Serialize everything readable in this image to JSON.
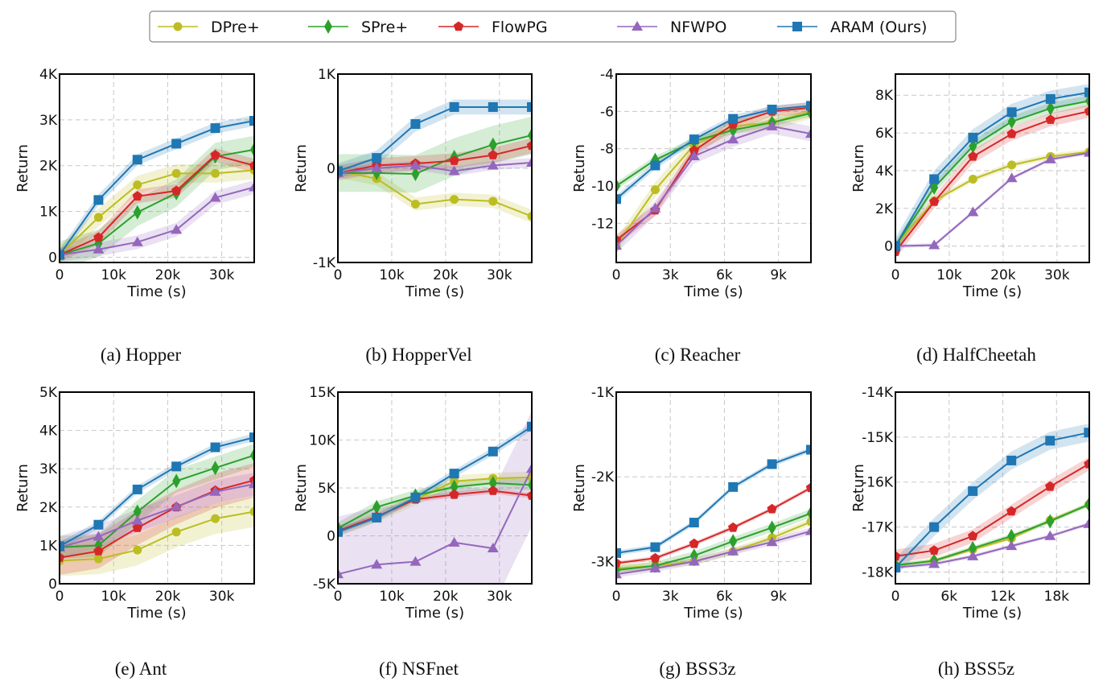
{
  "legend": {
    "placement": "top-center",
    "items": [
      {
        "name": "DPre+",
        "color": "#bcbd22",
        "marker": "circle"
      },
      {
        "name": "SPre+",
        "color": "#2ca02c",
        "marker": "thin-diamond"
      },
      {
        "name": "FlowPG",
        "color": "#d62728",
        "marker": "pentagon"
      },
      {
        "name": "NFWPO",
        "color": "#9467bd",
        "marker": "triangle-up"
      },
      {
        "name": "ARAM (Ours)",
        "color": "#1f77b4",
        "marker": "square"
      }
    ]
  },
  "chart_data": [
    {
      "type": "line",
      "title": "(a) Hopper",
      "xlabel": "Time (s)",
      "ylabel": "Return",
      "grid": true,
      "xlim": [
        0,
        36000
      ],
      "ylim": [
        -115,
        4000
      ],
      "xticks": [
        0,
        10000,
        20000,
        30000
      ],
      "xtick_labels": [
        "0",
        "10k",
        "20k",
        "30k"
      ],
      "yticks": [
        0,
        1000,
        2000,
        3000,
        4000
      ],
      "ytick_labels": [
        "0",
        "1K",
        "2K",
        "3K",
        "4K"
      ],
      "x": [
        0,
        7200,
        14400,
        21600,
        28800,
        36000
      ],
      "series": [
        {
          "name": "DPre+",
          "values": [
            50,
            870,
            1580,
            1830,
            1830,
            1900
          ],
          "band": 200
        },
        {
          "name": "SPre+",
          "values": [
            50,
            300,
            980,
            1400,
            2200,
            2350
          ],
          "band": 300
        },
        {
          "name": "FlowPG",
          "values": [
            50,
            430,
            1330,
            1450,
            2230,
            2000
          ],
          "band": 150
        },
        {
          "name": "NFWPO",
          "values": [
            50,
            170,
            330,
            600,
            1300,
            1530
          ],
          "band": 150
        },
        {
          "name": "ARAM (Ours)",
          "values": [
            50,
            1250,
            2130,
            2480,
            2820,
            2980
          ],
          "band": 120
        }
      ]
    },
    {
      "type": "line",
      "title": "(b) HopperVel",
      "xlabel": "Time (s)",
      "ylabel": "Return",
      "grid": true,
      "xlim": [
        0,
        36000
      ],
      "ylim": [
        -1000,
        1000
      ],
      "xticks": [
        0,
        10000,
        20000,
        30000
      ],
      "xtick_labels": [
        "0",
        "10k",
        "20k",
        "30k"
      ],
      "yticks": [
        -1000,
        0,
        1000
      ],
      "ytick_labels": [
        "-1K",
        "0",
        "1K"
      ],
      "x": [
        0,
        7200,
        14400,
        21600,
        28800,
        36000
      ],
      "series": [
        {
          "name": "DPre+",
          "values": [
            -30,
            -110,
            -380,
            -330,
            -350,
            -510
          ],
          "band": 70
        },
        {
          "name": "SPre+",
          "values": [
            -50,
            -50,
            -60,
            120,
            250,
            350
          ],
          "band": 200
        },
        {
          "name": "FlowPG",
          "values": [
            -50,
            30,
            50,
            80,
            140,
            240
          ],
          "band": 80
        },
        {
          "name": "NFWPO",
          "values": [
            -50,
            0,
            30,
            -30,
            30,
            60
          ],
          "band": 50
        },
        {
          "name": "ARAM (Ours)",
          "values": [
            -30,
            110,
            470,
            650,
            650,
            650
          ],
          "band": 80
        }
      ]
    },
    {
      "type": "line",
      "title": "(c) Reacher",
      "xlabel": "Time (s)",
      "ylabel": "Return",
      "grid": true,
      "xlim": [
        0,
        10800
      ],
      "ylim": [
        -14.1,
        -4
      ],
      "xticks": [
        0,
        3000,
        6000,
        9000
      ],
      "xtick_labels": [
        "0",
        "3k",
        "6k",
        "9k"
      ],
      "yticks": [
        -12,
        -10,
        -8,
        -6,
        -4
      ],
      "ytick_labels": [
        "-12",
        "-10",
        "-8",
        "-6",
        "-4"
      ],
      "x": [
        0,
        2160,
        4320,
        6480,
        8640,
        10800
      ],
      "series": [
        {
          "name": "DPre+",
          "values": [
            -13.2,
            -10.2,
            -7.8,
            -6.8,
            -6.6,
            -6.0
          ],
          "band": 0.4
        },
        {
          "name": "SPre+",
          "values": [
            -10.0,
            -8.6,
            -7.6,
            -7.0,
            -6.6,
            -6.1
          ],
          "band": 0.2
        },
        {
          "name": "FlowPG",
          "values": [
            -12.9,
            -11.3,
            -8.1,
            -6.7,
            -6.0,
            -5.8
          ],
          "band": 0.3
        },
        {
          "name": "NFWPO",
          "values": [
            -13.2,
            -11.2,
            -8.4,
            -7.5,
            -6.8,
            -7.2
          ],
          "band": 0.4
        },
        {
          "name": "ARAM (Ours)",
          "values": [
            -10.7,
            -8.9,
            -7.5,
            -6.4,
            -5.9,
            -5.7
          ],
          "band": 0.2
        }
      ]
    },
    {
      "type": "line",
      "title": "(d) HalfCheetah",
      "xlabel": "Time (s)",
      "ylabel": "Return",
      "grid": true,
      "xlim": [
        0,
        36000
      ],
      "ylim": [
        -870,
        9120
      ],
      "xticks": [
        0,
        10000,
        20000,
        30000
      ],
      "xtick_labels": [
        "0",
        "10k",
        "20k",
        "30k"
      ],
      "yticks": [
        0,
        2000,
        4000,
        6000,
        8000
      ],
      "ytick_labels": [
        "0",
        "2K",
        "4K",
        "6K",
        "8K"
      ],
      "x": [
        0,
        7200,
        14400,
        21600,
        28800,
        36000
      ],
      "series": [
        {
          "name": "DPre+",
          "values": [
            0,
            2400,
            3550,
            4300,
            4750,
            5000
          ],
          "band": 150
        },
        {
          "name": "SPre+",
          "values": [
            0,
            3100,
            5300,
            6600,
            7300,
            7700
          ],
          "band": 300
        },
        {
          "name": "FlowPG",
          "values": [
            -300,
            2350,
            4750,
            5950,
            6700,
            7150
          ],
          "band": 350
        },
        {
          "name": "NFWPO",
          "values": [
            0,
            50,
            1800,
            3600,
            4600,
            4950
          ],
          "band": 100
        },
        {
          "name": "ARAM (Ours)",
          "values": [
            0,
            3550,
            5750,
            7100,
            7800,
            8150
          ],
          "band": 450
        }
      ]
    },
    {
      "type": "line",
      "title": "(e) Ant",
      "xlabel": "Time (s)",
      "ylabel": "Return",
      "grid": true,
      "xlim": [
        0,
        36000
      ],
      "ylim": [
        0,
        5000
      ],
      "xticks": [
        0,
        10000,
        20000,
        30000
      ],
      "xtick_labels": [
        "0",
        "10k",
        "20k",
        "30k"
      ],
      "yticks": [
        0,
        1000,
        2000,
        3000,
        4000,
        5000
      ],
      "ytick_labels": [
        "0",
        "1K",
        "2K",
        "3K",
        "4K",
        "5K"
      ],
      "x": [
        0,
        7200,
        14400,
        21600,
        28800,
        36000
      ],
      "series": [
        {
          "name": "DPre+",
          "values": [
            600,
            650,
            880,
            1350,
            1700,
            1880
          ],
          "band": 400
        },
        {
          "name": "SPre+",
          "values": [
            950,
            1000,
            1880,
            2680,
            3020,
            3350
          ],
          "band": 300
        },
        {
          "name": "FlowPG",
          "values": [
            680,
            850,
            1460,
            2000,
            2430,
            2700
          ],
          "band": 450
        },
        {
          "name": "NFWPO",
          "values": [
            950,
            1230,
            1650,
            2010,
            2400,
            2600
          ],
          "band": 300
        },
        {
          "name": "ARAM (Ours)",
          "values": [
            980,
            1540,
            2460,
            3060,
            3560,
            3820
          ],
          "band": 100
        }
      ]
    },
    {
      "type": "line",
      "title": "(f) NSFnet",
      "xlabel": "Time (s)",
      "ylabel": "Return",
      "grid": true,
      "xlim": [
        0,
        36000
      ],
      "ylim": [
        -5000,
        15000
      ],
      "xticks": [
        0,
        10000,
        20000,
        30000
      ],
      "xtick_labels": [
        "0",
        "10k",
        "20k",
        "30k"
      ],
      "yticks": [
        -5000,
        0,
        5000,
        10000,
        15000
      ],
      "ytick_labels": [
        "-5K",
        "0",
        "5K",
        "10K",
        "15K"
      ],
      "x": [
        0,
        7200,
        14400,
        21600,
        28800,
        36000
      ],
      "series": [
        {
          "name": "DPre+",
          "values": [
            500,
            2000,
            3800,
            5700,
            6000,
            6100
          ],
          "band": 600
        },
        {
          "name": "SPre+",
          "values": [
            800,
            3000,
            4200,
            5100,
            5500,
            5300
          ],
          "band": 600
        },
        {
          "name": "FlowPG",
          "values": [
            500,
            2000,
            3800,
            4300,
            4700,
            4200
          ],
          "band": 300
        },
        {
          "name": "NFWPO",
          "values": [
            -4000,
            -3000,
            -2700,
            -700,
            -1300,
            7000
          ],
          "band": 6000
        },
        {
          "name": "ARAM (Ours)",
          "values": [
            400,
            1900,
            4000,
            6500,
            8800,
            11400
          ],
          "band": 400
        }
      ]
    },
    {
      "type": "line",
      "title": "(g) BSS3z",
      "xlabel": "Time (s)",
      "ylabel": "Return",
      "grid": true,
      "xlim": [
        0,
        10800
      ],
      "ylim": [
        -3262,
        -1000
      ],
      "xticks": [
        0,
        3000,
        6000,
        9000
      ],
      "xtick_labels": [
        "0",
        "3k",
        "6k",
        "9k"
      ],
      "yticks": [
        -3000,
        -2000,
        -1000
      ],
      "ytick_labels": [
        "-3K",
        "-2K",
        "-1K"
      ],
      "x": [
        0,
        2160,
        4320,
        6480,
        8640,
        10800
      ],
      "series": [
        {
          "name": "DPre+",
          "values": [
            -3080,
            -3050,
            -3000,
            -2880,
            -2720,
            -2530
          ],
          "band": 40
        },
        {
          "name": "SPre+",
          "values": [
            -3100,
            -3050,
            -2930,
            -2760,
            -2600,
            -2430
          ],
          "band": 50
        },
        {
          "name": "FlowPG",
          "values": [
            -3020,
            -2960,
            -2790,
            -2600,
            -2380,
            -2130
          ],
          "band": 25
        },
        {
          "name": "NFWPO",
          "values": [
            -3150,
            -3080,
            -3000,
            -2880,
            -2770,
            -2640
          ],
          "band": 40
        },
        {
          "name": "ARAM (Ours)",
          "values": [
            -2900,
            -2830,
            -2540,
            -2120,
            -1850,
            -1680
          ],
          "band": 30
        }
      ]
    },
    {
      "type": "line",
      "title": "(h) BSS5z",
      "xlabel": "Time (s)",
      "ylabel": "Return",
      "grid": true,
      "xlim": [
        0,
        21660
      ],
      "ylim": [
        -18260,
        -14000
      ],
      "xticks": [
        0,
        6000,
        12000,
        18000
      ],
      "xtick_labels": [
        "0",
        "6k",
        "12k",
        "18k"
      ],
      "yticks": [
        -18000,
        -17000,
        -16000,
        -15000,
        -14000
      ],
      "ytick_labels": [
        "-18K",
        "-17K",
        "-16K",
        "-15K",
        "-14K"
      ],
      "x": [
        0,
        4320,
        8640,
        12960,
        17280,
        21600
      ],
      "series": [
        {
          "name": "DPre+",
          "values": [
            -17850,
            -17750,
            -17500,
            -17250,
            -16850,
            -16500
          ],
          "band": 40
        },
        {
          "name": "SPre+",
          "values": [
            -17850,
            -17750,
            -17470,
            -17200,
            -16870,
            -16500
          ],
          "band": 50
        },
        {
          "name": "FlowPG",
          "values": [
            -17650,
            -17520,
            -17200,
            -16650,
            -16100,
            -15600
          ],
          "band": 150
        },
        {
          "name": "NFWPO",
          "values": [
            -17900,
            -17820,
            -17650,
            -17420,
            -17200,
            -16930
          ],
          "band": 40
        },
        {
          "name": "ARAM (Ours)",
          "values": [
            -17900,
            -17000,
            -16200,
            -15520,
            -15080,
            -14900
          ],
          "band": 200
        }
      ]
    }
  ]
}
